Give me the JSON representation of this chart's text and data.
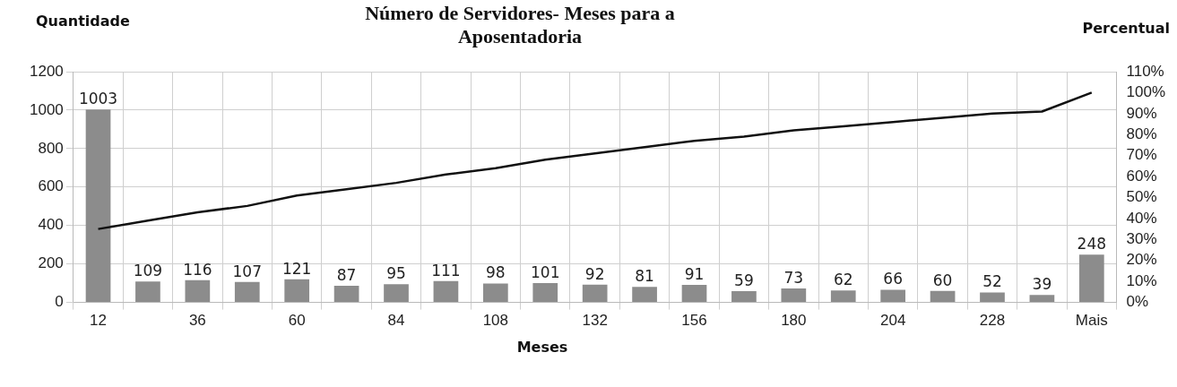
{
  "chart_data": {
    "type": "bar",
    "title": "Número de Servidores- Meses para a Aposentadoria",
    "xlabel": "Meses",
    "ylabel": "Quantidade",
    "y2label": "Percentual",
    "categories": [
      "12",
      null,
      "36",
      null,
      "60",
      null,
      "84",
      null,
      "108",
      null,
      "132",
      null,
      "156",
      null,
      "180",
      null,
      "204",
      null,
      "228",
      null,
      "Mais"
    ],
    "series": [
      {
        "color": "#8c8c8c",
        "values": [
          1003,
          109,
          116,
          107,
          121,
          87,
          95,
          111,
          98,
          101,
          92,
          81,
          91,
          59,
          73,
          62,
          66,
          60,
          52,
          39,
          248
        ],
        "value_labels": [
          "1003",
          "109",
          "116",
          "107",
          "121",
          "87",
          "95",
          "111",
          "98",
          "101",
          "92",
          "81",
          "91",
          "59",
          "73",
          "62",
          "66",
          "60",
          "52",
          "39",
          "248"
        ]
      },
      {
        "type": "line",
        "axis": "y2",
        "color": "#111111",
        "values": [
          35,
          39,
          43,
          46,
          51,
          54,
          57,
          61,
          64,
          68,
          71,
          74,
          77,
          79,
          82,
          84,
          86,
          88,
          90,
          91,
          100
        ]
      }
    ],
    "ylim": [
      0,
      1200
    ],
    "yticks": [
      0,
      200,
      400,
      600,
      800,
      1000,
      1200
    ],
    "y2lim": [
      0,
      110
    ],
    "y2ticks": [
      {
        "value": 0,
        "label": "0%"
      },
      {
        "value": 10,
        "label": "10%"
      },
      {
        "value": 20,
        "label": "20%"
      },
      {
        "value": 30,
        "label": "30%"
      },
      {
        "value": 40,
        "label": "40%"
      },
      {
        "value": 50,
        "label": "50%"
      },
      {
        "value": 60,
        "label": "60%"
      },
      {
        "value": 70,
        "label": "70%"
      },
      {
        "value": 80,
        "label": "80%"
      },
      {
        "value": 90,
        "label": "90%"
      },
      {
        "value": 100,
        "label": "100%"
      },
      {
        "value": 110,
        "label": "110%"
      }
    ],
    "grid": true,
    "legend": false,
    "marker": "none",
    "line_style": "solid"
  }
}
